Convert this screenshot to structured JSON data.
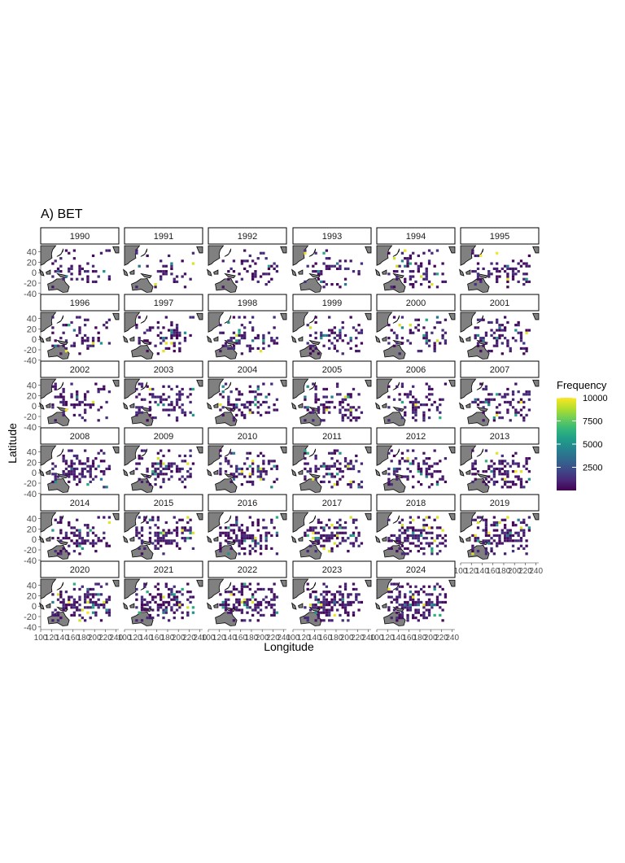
{
  "chart_data": {
    "type": "heatmap",
    "title": "A) BET",
    "xlabel": "Longitude",
    "ylabel": "Latitude",
    "facets": [
      "1990",
      "1991",
      "1992",
      "1993",
      "1994",
      "1995",
      "1996",
      "1997",
      "1998",
      "1999",
      "2000",
      "2001",
      "2002",
      "2003",
      "2004",
      "2005",
      "2006",
      "2007",
      "2008",
      "2009",
      "2010",
      "2011",
      "2012",
      "2013",
      "2014",
      "2015",
      "2016",
      "2017",
      "2018",
      "2019",
      "2020",
      "2021",
      "2022",
      "2023",
      "2024"
    ],
    "x_ticks": [
      100,
      120,
      140,
      160,
      180,
      200,
      220,
      240
    ],
    "x_tick_labels": [
      "100",
      "120",
      "140",
      "160",
      "180",
      "200",
      "220",
      "240"
    ],
    "y_ticks": [
      40,
      20,
      0,
      -20,
      -40
    ],
    "y_tick_labels": [
      "40",
      "20",
      "0",
      "-20",
      "-40"
    ],
    "xlim": [
      100,
      245
    ],
    "ylim": [
      -45,
      52
    ],
    "legend": {
      "title": "Frequency",
      "ticks": [
        10000,
        7500,
        5000,
        2500
      ],
      "tick_labels": [
        "10000",
        "7500",
        "5000",
        "2500"
      ],
      "range": [
        0,
        10000
      ],
      "position": "right"
    },
    "colors": {
      "viridis": [
        "#440154",
        "#482878",
        "#3e4a89",
        "#31688e",
        "#26828e",
        "#1f9e89",
        "#35b779",
        "#6ece58",
        "#b5de2b",
        "#fde725"
      ],
      "land": "#808080",
      "strip_fill": "#ffffff",
      "strip_border": "#000000",
      "axis_text": "#4d4d4d"
    },
    "grid": false
  }
}
